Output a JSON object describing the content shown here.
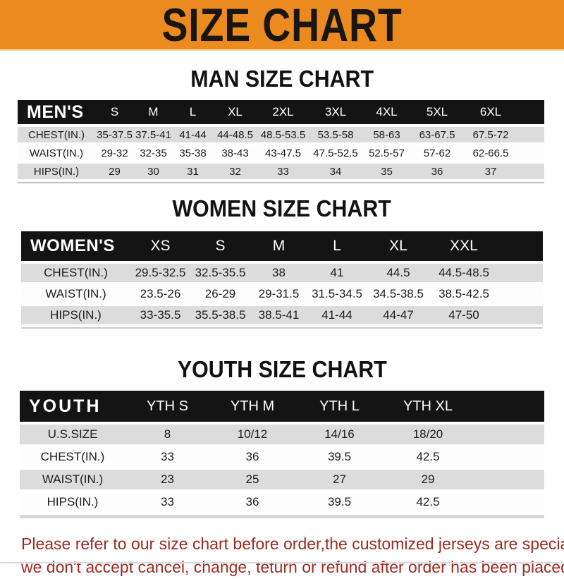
{
  "banner": {
    "title": "SIZE CHART"
  },
  "sections": {
    "men": {
      "heading": "MAN SIZE CHART",
      "table": {
        "header": [
          "MEN'S",
          "S",
          "M",
          "L",
          "XL",
          "2XL",
          "3XL",
          "4XL",
          "5XL",
          "6XL"
        ],
        "rows": [
          {
            "label": "CHEST(IN.)",
            "values": [
              "35-37.5",
              "37.5-41",
              "41-44",
              "44-48.5",
              "48.5-53.5",
              "53.5-58",
              "58-63",
              "63-67.5",
              "67.5-72"
            ]
          },
          {
            "label": "WAIST(IN.)",
            "values": [
              "29-32",
              "32-35",
              "35-38",
              "38-43",
              "43-47.5",
              "47.5-52.5",
              "52.5-57",
              "57-62",
              "62-66.5"
            ]
          },
          {
            "label": "HIPS(IN.)",
            "values": [
              "29",
              "30",
              "31",
              "32",
              "33",
              "34",
              "35",
              "36",
              "37"
            ]
          }
        ]
      }
    },
    "women": {
      "heading": "WOMEN SIZE CHART",
      "table": {
        "header": [
          "WOMEN'S",
          "XS",
          "S",
          "M",
          "L",
          "XL",
          "XXL"
        ],
        "rows": [
          {
            "label": "CHEST(IN.)",
            "values": [
              "29.5-32.5",
              "32.5-35.5",
              "38",
              "41",
              "44.5",
              "44.5-48.5"
            ]
          },
          {
            "label": "WAIST(IN.)",
            "values": [
              "23.5-26",
              "26-29",
              "29-31.5",
              "31.5-34.5",
              "34.5-38.5",
              "38.5-42.5"
            ]
          },
          {
            "label": "HIPS(IN.)",
            "values": [
              "33-35.5",
              "35.5-38.5",
              "38.5-41",
              "41-44",
              "44-47",
              "47-50"
            ]
          }
        ]
      }
    },
    "youth": {
      "heading": "YOUTH SIZE CHART",
      "table": {
        "header": [
          "YOUTH",
          "YTH S",
          "YTH M",
          "YTH L",
          "YTH XL"
        ],
        "rows": [
          {
            "label": "U.S.SIZE",
            "values": [
              "8",
              "10/12",
              "14/16",
              "18/20"
            ]
          },
          {
            "label": "CHEST(IN.)",
            "values": [
              "33",
              "36",
              "39.5",
              "42.5"
            ]
          },
          {
            "label": "WAIST(IN.)",
            "values": [
              "23",
              "25",
              "27",
              "29"
            ]
          },
          {
            "label": "HIPS(IN.)",
            "values": [
              "33",
              "36",
              "39.5",
              "42.5"
            ]
          }
        ]
      }
    }
  },
  "footer": {
    "lines": [
      "Please refer to our size chart before order,the customized jerseys are special products,",
      "we don't accept cancel, change, teturn or refund after order has been placed!"
    ]
  },
  "colors": {
    "banner_orange": "#EB8A1E",
    "header_bar_black": "#141414",
    "stripe_gray": "#DCDCDC",
    "footer_red": "#9C2B22",
    "heading_black": "#121212"
  }
}
